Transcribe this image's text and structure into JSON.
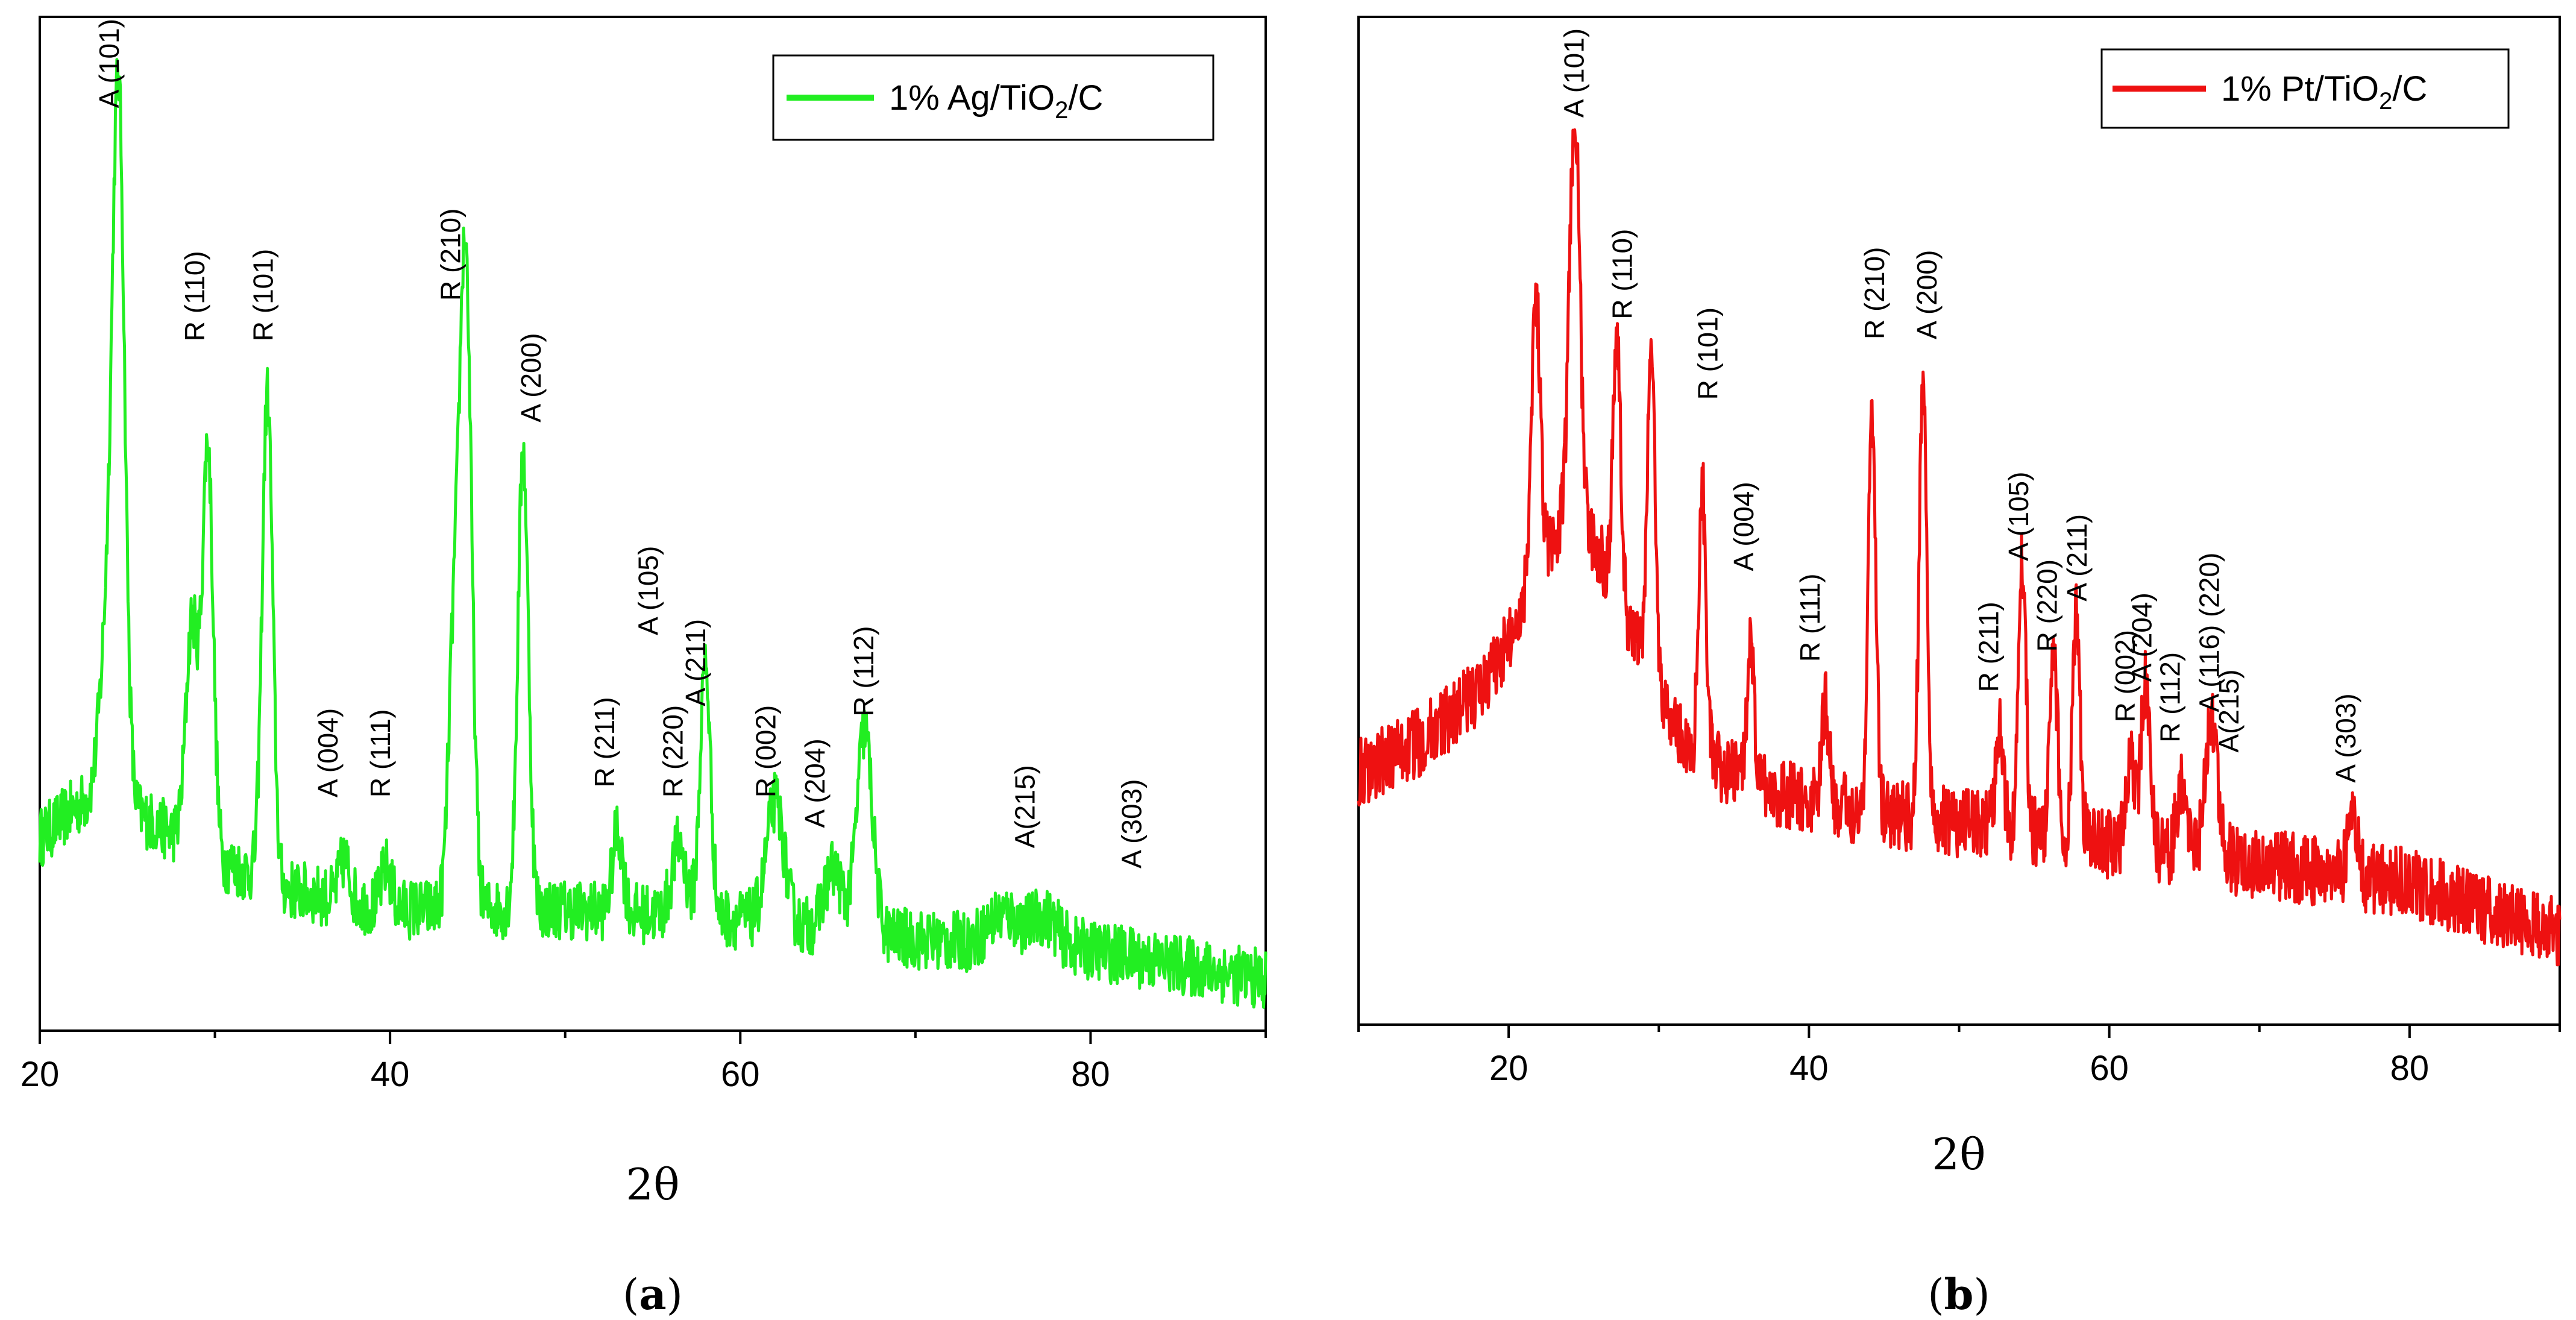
{
  "chart_data": [
    {
      "type": "line",
      "panel": "(a)",
      "panel_letter": "a",
      "legend": {
        "prefix": "1% Ag/TiO",
        "sub": "2",
        "suffix": "/C",
        "color": "#22ee22"
      },
      "xlabel": "2θ",
      "ylabel": "",
      "xlim": [
        20,
        90
      ],
      "ylim": [
        0,
        100
      ],
      "xticks": [
        20,
        40,
        60,
        80
      ],
      "series": [
        {
          "name": "1% Ag/TiO2/C",
          "color": "#22ee22",
          "baseline": 12,
          "noise": 3.0,
          "background": [
            [
              20,
              19
            ],
            [
              22,
              22
            ],
            [
              24,
              24
            ],
            [
              26,
              21
            ],
            [
              30,
              17
            ],
            [
              34,
              14
            ],
            [
              40,
              12
            ],
            [
              50,
              12
            ],
            [
              60,
              11
            ],
            [
              70,
              9
            ],
            [
              80,
              8
            ],
            [
              90,
              5
            ]
          ],
          "peaks": [
            {
              "x": 24.5,
              "h": 68,
              "w": 0.35
            },
            {
              "x": 23.8,
              "h": 14,
              "w": 0.4
            },
            {
              "x": 28.7,
              "h": 22,
              "w": 0.35
            },
            {
              "x": 29.6,
              "h": 40,
              "w": 0.3
            },
            {
              "x": 33.0,
              "h": 48,
              "w": 0.3
            },
            {
              "x": 37.4,
              "h": 4,
              "w": 0.3
            },
            {
              "x": 39.8,
              "h": 4,
              "w": 0.3
            },
            {
              "x": 44.3,
              "h": 65,
              "w": 0.35
            },
            {
              "x": 43.6,
              "h": 22,
              "w": 0.3
            },
            {
              "x": 47.6,
              "h": 45,
              "w": 0.3
            },
            {
              "x": 53.0,
              "h": 8,
              "w": 0.3
            },
            {
              "x": 56.5,
              "h": 7,
              "w": 0.4
            },
            {
              "x": 58.0,
              "h": 25,
              "w": 0.3
            },
            {
              "x": 62.0,
              "h": 12,
              "w": 0.5
            },
            {
              "x": 65.3,
              "h": 6,
              "w": 0.5
            },
            {
              "x": 67.1,
              "h": 20,
              "w": 0.45
            },
            {
              "x": 75.0,
              "h": 3,
              "w": 0.8
            },
            {
              "x": 77.3,
              "h": 3,
              "w": 0.8
            }
          ]
        }
      ],
      "annotations": [
        {
          "text": "A (101)",
          "x": 24.5,
          "y": 91
        },
        {
          "text": "R (110)",
          "x": 29.4,
          "y": 68
        },
        {
          "text": "R (101)",
          "x": 33.3,
          "y": 68
        },
        {
          "text": "A (004)",
          "x": 37.0,
          "y": 23
        },
        {
          "text": "R (111)",
          "x": 40.0,
          "y": 23
        },
        {
          "text": "R (210)",
          "x": 44.0,
          "y": 72
        },
        {
          "text": "A (200)",
          "x": 48.6,
          "y": 60
        },
        {
          "text": "R (211)",
          "x": 52.8,
          "y": 24
        },
        {
          "text": "A (105)",
          "x": 55.3,
          "y": 39
        },
        {
          "text": "R (220)",
          "x": 56.7,
          "y": 23
        },
        {
          "text": "A (211)",
          "x": 58.0,
          "y": 32
        },
        {
          "text": "R (002)",
          "x": 62.0,
          "y": 23
        },
        {
          "text": "A (204)",
          "x": 64.8,
          "y": 20
        },
        {
          "text": "R (112)",
          "x": 67.6,
          "y": 31
        },
        {
          "text": "A(215)",
          "x": 76.8,
          "y": 18
        },
        {
          "text": "A (303)",
          "x": 82.9,
          "y": 16
        }
      ]
    },
    {
      "type": "line",
      "panel": "(b)",
      "panel_letter": "b",
      "legend": {
        "prefix": "1% Pt/TiO",
        "sub": "2",
        "suffix": "/C",
        "color": "#ee1111"
      },
      "xlabel": "2θ",
      "ylabel": "",
      "xlim": [
        10,
        90
      ],
      "ylim": [
        0,
        100
      ],
      "xticks": [
        20,
        40,
        60,
        80
      ],
      "series": [
        {
          "name": "1% Pt/TiO2/C",
          "color": "#ee1111",
          "baseline": 10,
          "noise": 3.5,
          "background": [
            [
              10,
              25
            ],
            [
              14,
              28
            ],
            [
              18,
              33
            ],
            [
              20,
              38
            ],
            [
              22,
              46
            ],
            [
              24,
              50
            ],
            [
              26,
              47
            ],
            [
              28,
              40
            ],
            [
              30,
              33
            ],
            [
              32,
              27
            ],
            [
              36,
              24
            ],
            [
              40,
              22
            ],
            [
              50,
              20
            ],
            [
              60,
              18
            ],
            [
              70,
              16
            ],
            [
              80,
              14
            ],
            [
              90,
              9
            ]
          ],
          "peaks": [
            {
              "x": 21.8,
              "h": 27,
              "w": 0.3
            },
            {
              "x": 24.4,
              "h": 41,
              "w": 0.35
            },
            {
              "x": 27.2,
              "h": 26,
              "w": 0.25
            },
            {
              "x": 29.5,
              "h": 33,
              "w": 0.25
            },
            {
              "x": 32.9,
              "h": 27,
              "w": 0.25
            },
            {
              "x": 36.1,
              "h": 13,
              "w": 0.25
            },
            {
              "x": 41.1,
              "h": 10,
              "w": 0.25
            },
            {
              "x": 44.2,
              "h": 40,
              "w": 0.25
            },
            {
              "x": 47.6,
              "h": 44,
              "w": 0.25
            },
            {
              "x": 52.7,
              "h": 10,
              "w": 0.25
            },
            {
              "x": 54.2,
              "h": 27,
              "w": 0.25
            },
            {
              "x": 56.3,
              "h": 18,
              "w": 0.25
            },
            {
              "x": 57.8,
              "h": 22,
              "w": 0.25
            },
            {
              "x": 61.4,
              "h": 8,
              "w": 0.3
            },
            {
              "x": 62.4,
              "h": 16,
              "w": 0.3
            },
            {
              "x": 64.8,
              "h": 7,
              "w": 0.3
            },
            {
              "x": 66.8,
              "h": 14,
              "w": 0.4
            },
            {
              "x": 76.2,
              "h": 6,
              "w": 0.3
            }
          ]
        }
      ],
      "annotations": [
        {
          "text": "A (101)",
          "x": 25.0,
          "y": 90
        },
        {
          "text": "R (110)",
          "x": 28.2,
          "y": 70
        },
        {
          "text": "R (101)",
          "x": 33.9,
          "y": 62
        },
        {
          "text": "A (004)",
          "x": 36.3,
          "y": 45
        },
        {
          "text": "R (111)",
          "x": 40.7,
          "y": 36
        },
        {
          "text": "R (210)",
          "x": 45.0,
          "y": 68
        },
        {
          "text": "A (200)",
          "x": 48.5,
          "y": 68
        },
        {
          "text": "R (211)",
          "x": 52.6,
          "y": 33
        },
        {
          "text": "A (105)",
          "x": 54.6,
          "y": 46
        },
        {
          "text": "R (220)",
          "x": 56.5,
          "y": 37
        },
        {
          "text": "A (211)",
          "x": 58.5,
          "y": 42
        },
        {
          "text": "R (002)",
          "x": 61.7,
          "y": 30
        },
        {
          "text": "A (204)",
          "x": 62.8,
          "y": 34
        },
        {
          "text": "R (112)",
          "x": 64.7,
          "y": 28
        },
        {
          "text": "A (116) (220)",
          "x": 67.3,
          "y": 31
        },
        {
          "text": "A(215)",
          "x": 68.6,
          "y": 27
        },
        {
          "text": "A (303)",
          "x": 76.4,
          "y": 24
        }
      ]
    }
  ]
}
